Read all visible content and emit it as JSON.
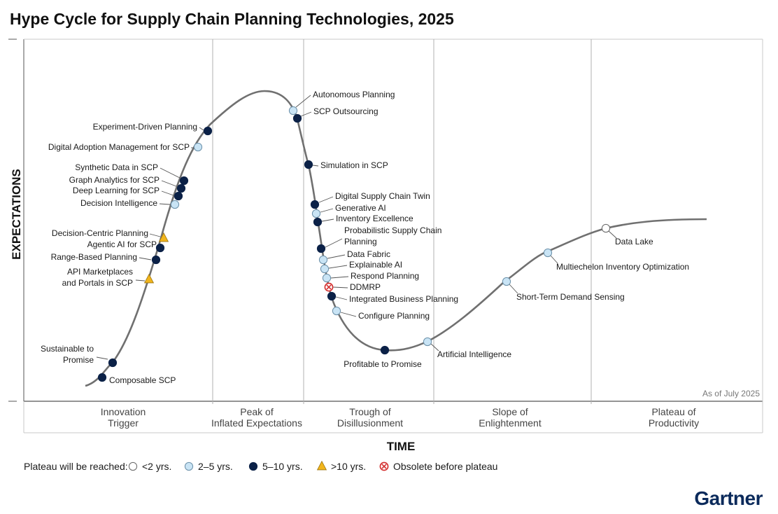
{
  "chart_data": {
    "type": "hype-cycle",
    "title": "Hype Cycle for Supply Chain Planning Technologies, 2025",
    "ylabel": "EXPECTATIONS",
    "xlabel": "TIME",
    "as_of": "As of July 2025",
    "phases": [
      "Innovation Trigger",
      "Peak of Inflated Expectations",
      "Trough of Disillusionment",
      "Slope of Enlightenment",
      "Plateau of Productivity"
    ],
    "legend_title": "Plateau will be reached:",
    "legend": [
      {
        "key": "lt2",
        "label": "<2 yrs."
      },
      {
        "key": "2to5",
        "label": "2–5 yrs."
      },
      {
        "key": "5to10",
        "label": "5–10 yrs."
      },
      {
        "key": "gt10",
        "label": ">10 yrs."
      },
      {
        "key": "obsolete",
        "label": "Obsolete before plateau"
      }
    ],
    "colors": {
      "lt2": "#ffffff",
      "2to5": "#c9e4f5",
      "5to10": "#0b2147",
      "gt10": "#f1b51c",
      "obsolete": "#d32f2f",
      "curve": "#707070",
      "divider": "#b0b0b0",
      "brand": "#0b2a5b"
    },
    "technologies": [
      {
        "name": "Composable SCP",
        "phase": "Innovation Trigger",
        "plateau": "5to10"
      },
      {
        "name": "Sustainable to Promise",
        "phase": "Innovation Trigger",
        "plateau": "5to10"
      },
      {
        "name": "API Marketplaces and Portals in SCP",
        "phase": "Innovation Trigger",
        "plateau": "gt10"
      },
      {
        "name": "Range-Based Planning",
        "phase": "Innovation Trigger",
        "plateau": "5to10"
      },
      {
        "name": "Agentic AI for SCP",
        "phase": "Innovation Trigger",
        "plateau": "5to10"
      },
      {
        "name": "Decision-Centric Planning",
        "phase": "Innovation Trigger",
        "plateau": "gt10"
      },
      {
        "name": "Decision Intelligence",
        "phase": "Innovation Trigger",
        "plateau": "2to5"
      },
      {
        "name": "Deep Learning for SCP",
        "phase": "Innovation Trigger",
        "plateau": "5to10"
      },
      {
        "name": "Graph Analytics for SCP",
        "phase": "Innovation Trigger",
        "plateau": "5to10"
      },
      {
        "name": "Synthetic Data in SCP",
        "phase": "Innovation Trigger",
        "plateau": "5to10"
      },
      {
        "name": "Digital Adoption Management for SCP",
        "phase": "Innovation Trigger",
        "plateau": "2to5"
      },
      {
        "name": "Experiment-Driven Planning",
        "phase": "Innovation Trigger",
        "plateau": "5to10"
      },
      {
        "name": "Autonomous Planning",
        "phase": "Peak of Inflated Expectations",
        "plateau": "2to5"
      },
      {
        "name": "SCP Outsourcing",
        "phase": "Peak of Inflated Expectations",
        "plateau": "5to10"
      },
      {
        "name": "Simulation in SCP",
        "phase": "Trough of Disillusionment",
        "plateau": "5to10"
      },
      {
        "name": "Digital Supply Chain Twin",
        "phase": "Trough of Disillusionment",
        "plateau": "5to10"
      },
      {
        "name": "Generative AI",
        "phase": "Trough of Disillusionment",
        "plateau": "2to5"
      },
      {
        "name": "Inventory Excellence",
        "phase": "Trough of Disillusionment",
        "plateau": "5to10"
      },
      {
        "name": "Probabilistic Supply Chain Planning",
        "phase": "Trough of Disillusionment",
        "plateau": "5to10"
      },
      {
        "name": "Data Fabric",
        "phase": "Trough of Disillusionment",
        "plateau": "2to5"
      },
      {
        "name": "Explainable AI",
        "phase": "Trough of Disillusionment",
        "plateau": "2to5"
      },
      {
        "name": "Respond Planning",
        "phase": "Trough of Disillusionment",
        "plateau": "2to5"
      },
      {
        "name": "DDMRP",
        "phase": "Trough of Disillusionment",
        "plateau": "obsolete"
      },
      {
        "name": "Integrated Business Planning",
        "phase": "Trough of Disillusionment",
        "plateau": "5to10"
      },
      {
        "name": "Configure Planning",
        "phase": "Trough of Disillusionment",
        "plateau": "2to5"
      },
      {
        "name": "Profitable to Promise",
        "phase": "Trough of Disillusionment",
        "plateau": "5to10"
      },
      {
        "name": "Artificial Intelligence",
        "phase": "Trough of Disillusionment",
        "plateau": "2to5"
      },
      {
        "name": "Short-Term Demand Sensing",
        "phase": "Slope of Enlightenment",
        "plateau": "2to5"
      },
      {
        "name": "Multiechelon Inventory Optimization",
        "phase": "Slope of Enlightenment",
        "plateau": "2to5"
      },
      {
        "name": "Data Lake",
        "phase": "Slope of Enlightenment",
        "plateau": "lt2"
      }
    ]
  },
  "brand": "Gartner"
}
